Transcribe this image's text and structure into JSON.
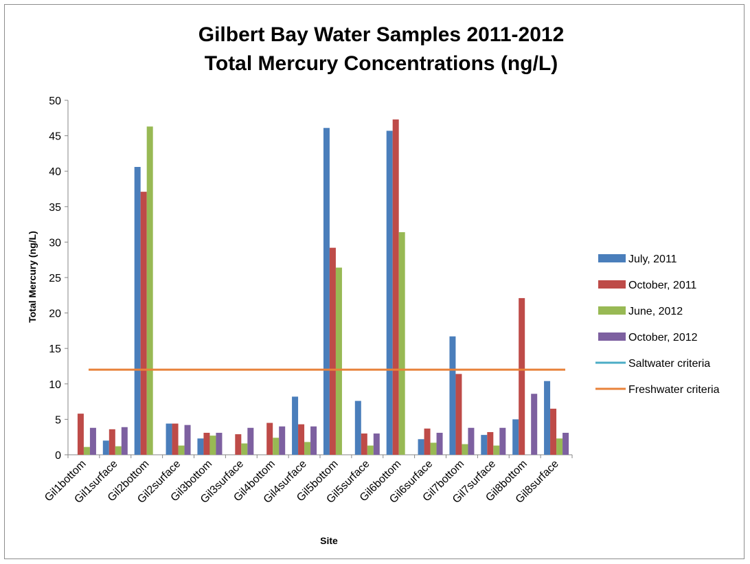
{
  "chart_data": {
    "type": "bar",
    "title": [
      "Gilbert Bay Water Samples 2011-2012",
      "Total Mercury Concentrations (ng/L)"
    ],
    "xlabel": "Site",
    "ylabel": "Total Mercury (ng/L)",
    "ylim": [
      0,
      50
    ],
    "yticks": [
      0,
      5,
      10,
      15,
      20,
      25,
      30,
      35,
      40,
      45,
      50
    ],
    "grid": false,
    "legend_position": "right",
    "categories": [
      "Gil1bottom",
      "Gil1surface",
      "Gil2bottom",
      "Gil2surface",
      "Gil3bottom",
      "Gil3surface",
      "Gil4bottom",
      "Gil4surface",
      "Gil5bottom",
      "Gil5surface",
      "Gil6bottom",
      "Gil6surface",
      "Gil7bottom",
      "Gil7surface",
      "Gil8bottom",
      "Gil8surface"
    ],
    "series": [
      {
        "name": "July, 2011",
        "color": "#4a7ebb",
        "values": [
          null,
          2.0,
          40.6,
          4.4,
          2.3,
          null,
          null,
          8.2,
          46.1,
          7.6,
          45.7,
          2.2,
          16.7,
          2.8,
          5.0,
          10.4
        ]
      },
      {
        "name": "October, 2011",
        "color": "#be4b48",
        "values": [
          5.8,
          3.6,
          37.1,
          4.4,
          3.1,
          2.9,
          4.5,
          4.3,
          29.2,
          3.0,
          47.3,
          3.7,
          11.4,
          3.2,
          22.1,
          6.5
        ]
      },
      {
        "name": "June, 2012",
        "color": "#98b954",
        "values": [
          1.1,
          1.2,
          46.3,
          1.3,
          2.7,
          1.6,
          2.4,
          1.8,
          26.4,
          1.3,
          31.4,
          1.7,
          1.5,
          1.3,
          null,
          2.3
        ]
      },
      {
        "name": "October, 2012",
        "color": "#7d60a0",
        "values": [
          3.8,
          3.9,
          null,
          4.2,
          3.1,
          3.8,
          4.0,
          4.0,
          null,
          3.0,
          null,
          3.1,
          3.8,
          3.8,
          8.6,
          3.1
        ]
      }
    ],
    "reference_lines": [
      {
        "name": "Saltwater criteria",
        "color": "#4bacc6",
        "value": null
      },
      {
        "name": "Freshwater criteria",
        "color": "#e8823a",
        "value": 12
      }
    ]
  }
}
